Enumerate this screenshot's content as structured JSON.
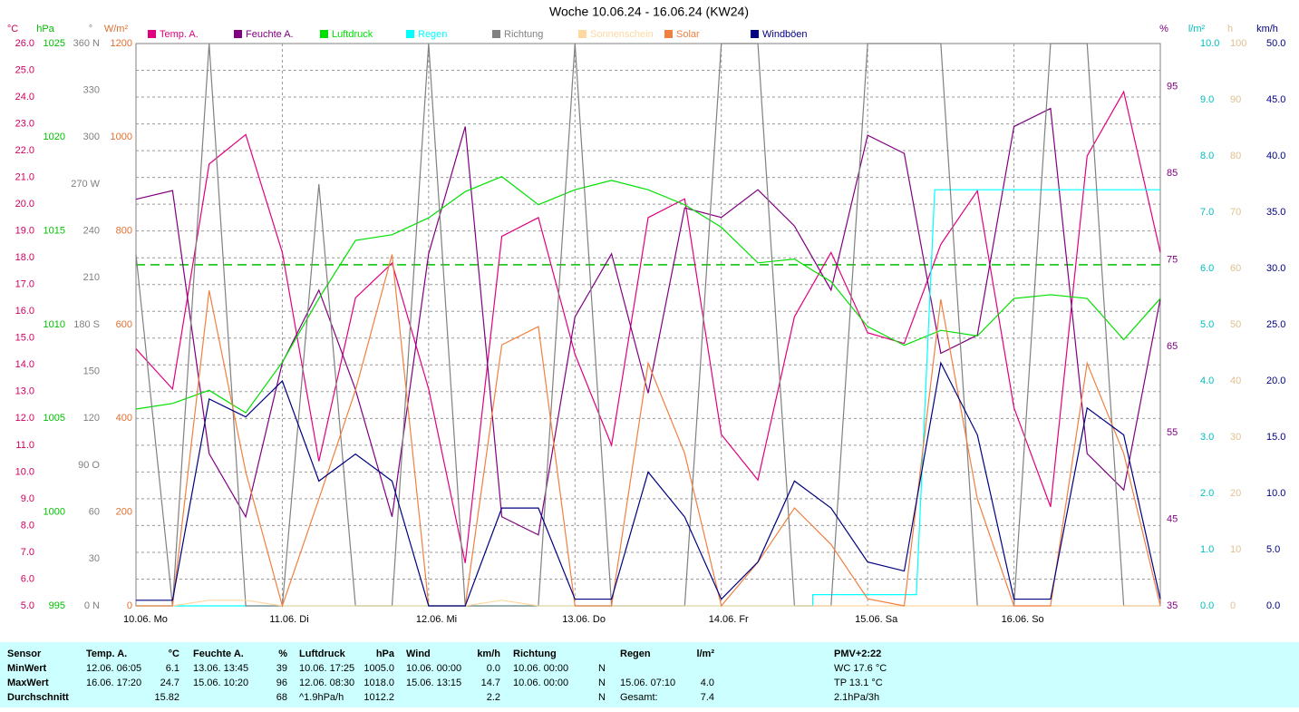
{
  "chart_data": {
    "type": "line",
    "title": "Woche 10.06.24 - 16.06.24 (KW24)",
    "grid": true,
    "xlim": [
      0,
      168
    ],
    "xticks": [
      {
        "value": 0,
        "label": "10.06.  Mo"
      },
      {
        "value": 24,
        "label": "11.06.  Di"
      },
      {
        "value": 48,
        "label": "12.06.  Mi"
      },
      {
        "value": 72,
        "label": "13.06.  Do"
      },
      {
        "value": 96,
        "label": "14.06.  Fr"
      },
      {
        "value": 120,
        "label": "15.06.  Sa"
      },
      {
        "value": 144,
        "label": "16.06.  So"
      }
    ],
    "x": [
      0,
      6,
      12,
      18,
      24,
      30,
      36,
      42,
      48,
      54,
      60,
      66,
      72,
      78,
      84,
      90,
      96,
      102,
      108,
      114,
      120,
      126,
      132,
      138,
      144,
      150,
      156,
      162,
      168
    ],
    "axes": [
      {
        "unit": "°C",
        "color": "#d00060",
        "ylim": [
          5,
          26
        ],
        "yticks": [
          {
            "value": 5,
            "label": "5.0"
          },
          {
            "value": 6,
            "label": "6.0"
          },
          {
            "value": 7,
            "label": "7.0"
          },
          {
            "value": 8,
            "label": "8.0"
          },
          {
            "value": 9,
            "label": "9.0"
          },
          {
            "value": 10,
            "label": "10.0"
          },
          {
            "value": 11,
            "label": "11.0"
          },
          {
            "value": 12,
            "label": "12.0"
          },
          {
            "value": 13,
            "label": "13.0"
          },
          {
            "value": 14,
            "label": "14.0"
          },
          {
            "value": 15,
            "label": "15.0"
          },
          {
            "value": 16,
            "label": "16.0"
          },
          {
            "value": 17,
            "label": "17.0"
          },
          {
            "value": 18,
            "label": "18.0"
          },
          {
            "value": 19,
            "label": "19.0"
          },
          {
            "value": 20,
            "label": "20.0"
          },
          {
            "value": 21,
            "label": "21.0"
          },
          {
            "value": 22,
            "label": "22.0"
          },
          {
            "value": 23,
            "label": "23.0"
          },
          {
            "value": 24,
            "label": "24.0"
          },
          {
            "value": 25,
            "label": "25.0"
          },
          {
            "value": 26,
            "label": "26.0"
          }
        ]
      },
      {
        "unit": "hPa",
        "color": "#00c000",
        "ylim": [
          995,
          1025
        ],
        "yticks": [
          995,
          1000,
          1005,
          1010,
          1015,
          1020,
          1025
        ]
      },
      {
        "unit": "°",
        "color": "#808080",
        "ylim": [
          0,
          360
        ],
        "yticks": [
          {
            "value": 0,
            "label": "0 N"
          },
          30,
          60,
          {
            "value": 90,
            "label": "90 O"
          },
          120,
          150,
          {
            "value": 180,
            "label": "180 S"
          },
          210,
          240,
          {
            "value": 270,
            "label": "270 W"
          },
          300,
          330,
          {
            "value": 360,
            "label": "360 N"
          }
        ]
      },
      {
        "unit": "W/m²",
        "color": "#e07030",
        "ylim": [
          0,
          1200
        ],
        "yticks": [
          0,
          200,
          400,
          600,
          800,
          1000,
          1200
        ]
      },
      {
        "unit": "%",
        "color": "#800080",
        "ylim": [
          35,
          100
        ],
        "yticks": [
          35,
          45,
          55,
          65,
          75,
          85,
          95
        ]
      },
      {
        "unit": "l/m²",
        "color": "#00c0c0",
        "ylim": [
          0,
          10
        ],
        "yticks": [
          {
            "value": 0,
            "label": "0.0"
          },
          {
            "value": 1,
            "label": "1.0"
          },
          {
            "value": 2,
            "label": "2.0"
          },
          {
            "value": 3,
            "label": "3.0"
          },
          {
            "value": 4,
            "label": "4.0"
          },
          {
            "value": 5,
            "label": "5.0"
          },
          {
            "value": 6,
            "label": "6.0"
          },
          {
            "value": 7,
            "label": "7.0"
          },
          {
            "value": 8,
            "label": "8.0"
          },
          {
            "value": 9,
            "label": "9.0"
          },
          {
            "value": 10,
            "label": "10.0"
          }
        ]
      },
      {
        "unit": "h",
        "color": "#e0c090",
        "ylim": [
          0,
          100
        ],
        "yticks": [
          0,
          10,
          20,
          30,
          40,
          50,
          60,
          70,
          80,
          90,
          100
        ]
      },
      {
        "unit": "km/h",
        "color": "#000080",
        "ylim": [
          0,
          50
        ],
        "yticks": [
          {
            "value": 0,
            "label": "0.0"
          },
          {
            "value": 5,
            "label": "5.0"
          },
          {
            "value": 10,
            "label": "10.0"
          },
          {
            "value": 15,
            "label": "15.0"
          },
          {
            "value": 20,
            "label": "20.0"
          },
          {
            "value": 25,
            "label": "25.0"
          },
          {
            "value": 30,
            "label": "30.0"
          },
          {
            "value": 35,
            "label": "35.0"
          },
          {
            "value": 40,
            "label": "40.0"
          },
          {
            "value": 45,
            "label": "45.0"
          },
          {
            "value": 50,
            "label": "50.0"
          }
        ]
      }
    ],
    "series": [
      {
        "name": "Temp. A.",
        "color": "#e0007f",
        "axis": 0,
        "values": [
          14.6,
          13.1,
          21.5,
          22.6,
          18.2,
          10.4,
          16.5,
          17.8,
          13.1,
          6.6,
          18.8,
          19.5,
          14.4,
          11.0,
          19.5,
          20.2,
          11.4,
          9.7,
          15.8,
          18.2,
          15.2,
          14.8,
          18.5,
          20.5,
          12.4,
          8.7,
          21.8,
          24.2,
          18.2
        ]
      },
      {
        "name": "Feuchte A.",
        "color": "#800080",
        "axis": 4,
        "values": [
          82.0,
          83.0,
          52.6,
          45.3,
          63.1,
          71.5,
          60.0,
          45.3,
          75.7,
          90.4,
          45.3,
          43.2,
          68.4,
          75.7,
          59.6,
          81.0,
          79.9,
          83.1,
          78.9,
          71.5,
          89.4,
          87.3,
          64.2,
          66.3,
          90.4,
          92.5,
          52.6,
          48.4,
          70.5
        ]
      },
      {
        "name": "Luftdruck",
        "color": "#00e000",
        "axis": 1,
        "values": [
          1005.5,
          1005.8,
          1006.5,
          1005.3,
          1008.0,
          1011.4,
          1014.5,
          1014.8,
          1015.7,
          1017.1,
          1017.9,
          1016.4,
          1017.2,
          1017.7,
          1017.2,
          1016.4,
          1015.2,
          1013.3,
          1013.5,
          1012.3,
          1009.9,
          1008.9,
          1009.7,
          1009.4,
          1011.4,
          1011.6,
          1011.4,
          1009.2,
          1011.4
        ]
      },
      {
        "name": "Regen",
        "color": "#00ffff",
        "axis": 5,
        "x": [
          0,
          111,
          111,
          128,
          131,
          168
        ],
        "values": [
          0,
          0,
          0.2,
          0.2,
          7.4,
          7.4
        ]
      },
      {
        "name": "Richtung",
        "color": "#808080",
        "axis": 2,
        "values": [
          225,
          0,
          360,
          0,
          0,
          270,
          0,
          0,
          360,
          0,
          0,
          0,
          360,
          0,
          0,
          0,
          360,
          360,
          0,
          0,
          360,
          360,
          360,
          0,
          0,
          360,
          360,
          0,
          0
        ]
      },
      {
        "name": "Sonnenschein",
        "color": "#ffd8a0",
        "axis": 6,
        "values": [
          0,
          0,
          1,
          1,
          0,
          0,
          0,
          0,
          0,
          0,
          1,
          0,
          0,
          0,
          0,
          0,
          0,
          0,
          0,
          0,
          0,
          0,
          0,
          0,
          0,
          0,
          0,
          0,
          0
        ]
      },
      {
        "name": "Solar",
        "color": "#f08040",
        "axis": 3,
        "values": [
          0,
          0,
          673,
          286,
          0,
          228,
          460,
          750,
          0,
          0,
          557,
          596,
          0,
          0,
          518,
          325,
          0,
          93,
          209,
          131,
          15,
          0,
          654,
          228,
          0,
          0,
          518,
          325,
          0
        ]
      },
      {
        "name": "Windböen",
        "color": "#000080",
        "axis": 7,
        "values": [
          0.5,
          0.5,
          18.4,
          16.8,
          20.0,
          11.1,
          13.5,
          11.1,
          0,
          0,
          8.7,
          8.7,
          0.6,
          0.6,
          11.9,
          7.9,
          0.6,
          3.9,
          11.1,
          8.7,
          3.9,
          3.1,
          21.6,
          15.2,
          0.6,
          0.6,
          17.6,
          15.2,
          0.6
        ]
      }
    ],
    "reference_pressure": 1013.2
  },
  "table": {
    "rows": [
      [
        "Sensor",
        "Temp. A.",
        "°C",
        "Feuchte A.",
        "%",
        "Luftdruck",
        "hPa",
        "Wind",
        "km/h",
        "Richtung",
        null,
        "Regen",
        "l/m²",
        "PMV+2:22"
      ],
      [
        "MinWert",
        "12.06.  06:05",
        "6.1",
        "13.06.  13:45",
        "39",
        "10.06.  17:25",
        "1005.0",
        "10.06.  00:00",
        "0.0",
        "10.06.  00:00",
        "N",
        null,
        null,
        "WC 17.6 °C"
      ],
      [
        "MaxWert",
        "16.06.  17:20",
        "24.7",
        "15.06.  10:20",
        "96",
        "12.06.  08:30",
        "1018.0",
        "15.06.  13:15",
        "14.7",
        "10.06.  00:00",
        "N",
        "15.06.  07:10",
        "4.0",
        "TP 13.1 °C"
      ],
      [
        "Durchschnitt",
        null,
        "15.82",
        null,
        "68",
        "^1.9hPa/h",
        "1012.2",
        null,
        "2.2",
        null,
        "N",
        "Gesamt:",
        "7.4",
        "2.1hPa/3h"
      ]
    ]
  }
}
